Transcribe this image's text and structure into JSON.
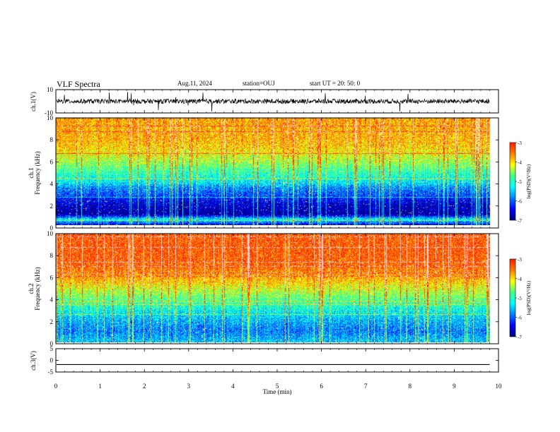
{
  "header": {
    "title": "VLF Spectra",
    "date": "Aug.11, 2024",
    "station": "station=OUJ",
    "start": "start UT =  20: 50: 0"
  },
  "colors": {
    "axis": "#000000",
    "colormap": [
      "#00007a",
      "#0000ff",
      "#0080ff",
      "#00ffff",
      "#40ff80",
      "#ffff00",
      "#ff8000",
      "#ff2000"
    ]
  },
  "chart_data": [
    {
      "type": "line",
      "panel": "ch1_waveform",
      "ylabel": "ch.1(V)",
      "ylim": [
        -10,
        10
      ],
      "yticks": [
        "10",
        "-10"
      ],
      "baseline": 0,
      "x_unit": "min"
    },
    {
      "type": "heatmap",
      "panel": "ch1_spectrogram",
      "ylabel": "ch.1\nFrequency (kHz)",
      "ylim": [
        0,
        10
      ],
      "yticks": [
        "0",
        "2",
        "4",
        "6",
        "8",
        "10"
      ],
      "colorbar": {
        "label": "log(PSD)(V²/Hz)",
        "range": [
          -7,
          -3
        ],
        "ticks": [
          "-3",
          "-4",
          "-5",
          "-6",
          "-7"
        ]
      },
      "profile_khz": [
        {
          "f": 0.0,
          "level": -6.5
        },
        {
          "f": 0.5,
          "level": -5.2
        },
        {
          "f": 1.0,
          "level": -6.9
        },
        {
          "f": 2.0,
          "level": -6.6
        },
        {
          "f": 2.5,
          "level": -6.3
        },
        {
          "f": 3.0,
          "level": -6.0
        },
        {
          "f": 3.5,
          "level": -5.8
        },
        {
          "f": 4.0,
          "level": -5.3
        },
        {
          "f": 5.0,
          "level": -4.9
        },
        {
          "f": 6.0,
          "level": -4.4
        },
        {
          "f": 7.0,
          "level": -4.0
        },
        {
          "f": 8.0,
          "level": -3.8
        },
        {
          "f": 10.0,
          "level": -3.7
        }
      ]
    },
    {
      "type": "heatmap",
      "panel": "ch2_spectrogram",
      "ylabel": "ch.2\nFrequency (kHz)",
      "ylim": [
        0,
        10
      ],
      "yticks": [
        "0",
        "2",
        "4",
        "6",
        "8",
        "10"
      ],
      "colorbar": {
        "label": "log(PSD)(V²/Hz)",
        "range": [
          -7,
          -3
        ],
        "ticks": [
          "-3",
          "-4",
          "-5",
          "-6",
          "-7"
        ]
      },
      "profile_khz": [
        {
          "f": 0.0,
          "level": -5.5
        },
        {
          "f": 1.0,
          "level": -5.9
        },
        {
          "f": 2.0,
          "level": -5.6
        },
        {
          "f": 3.0,
          "level": -5.2
        },
        {
          "f": 4.0,
          "level": -4.7
        },
        {
          "f": 5.0,
          "level": -4.2
        },
        {
          "f": 6.0,
          "level": -3.7
        },
        {
          "f": 7.0,
          "level": -3.4
        },
        {
          "f": 8.0,
          "level": -3.3
        },
        {
          "f": 10.0,
          "level": -3.3
        }
      ]
    },
    {
      "type": "line",
      "panel": "ch3_waveform",
      "ylabel": "ch.3(V)",
      "ylim": [
        -5,
        5
      ],
      "yticks": [
        "5",
        "0",
        "-5"
      ],
      "constant_value": -1.8
    }
  ],
  "xaxis": {
    "label": "Time (min)",
    "range": [
      0,
      10
    ],
    "data_end": 9.8,
    "ticks": [
      "0",
      "1",
      "2",
      "3",
      "4",
      "5",
      "6",
      "7",
      "8",
      "9",
      "10"
    ]
  }
}
